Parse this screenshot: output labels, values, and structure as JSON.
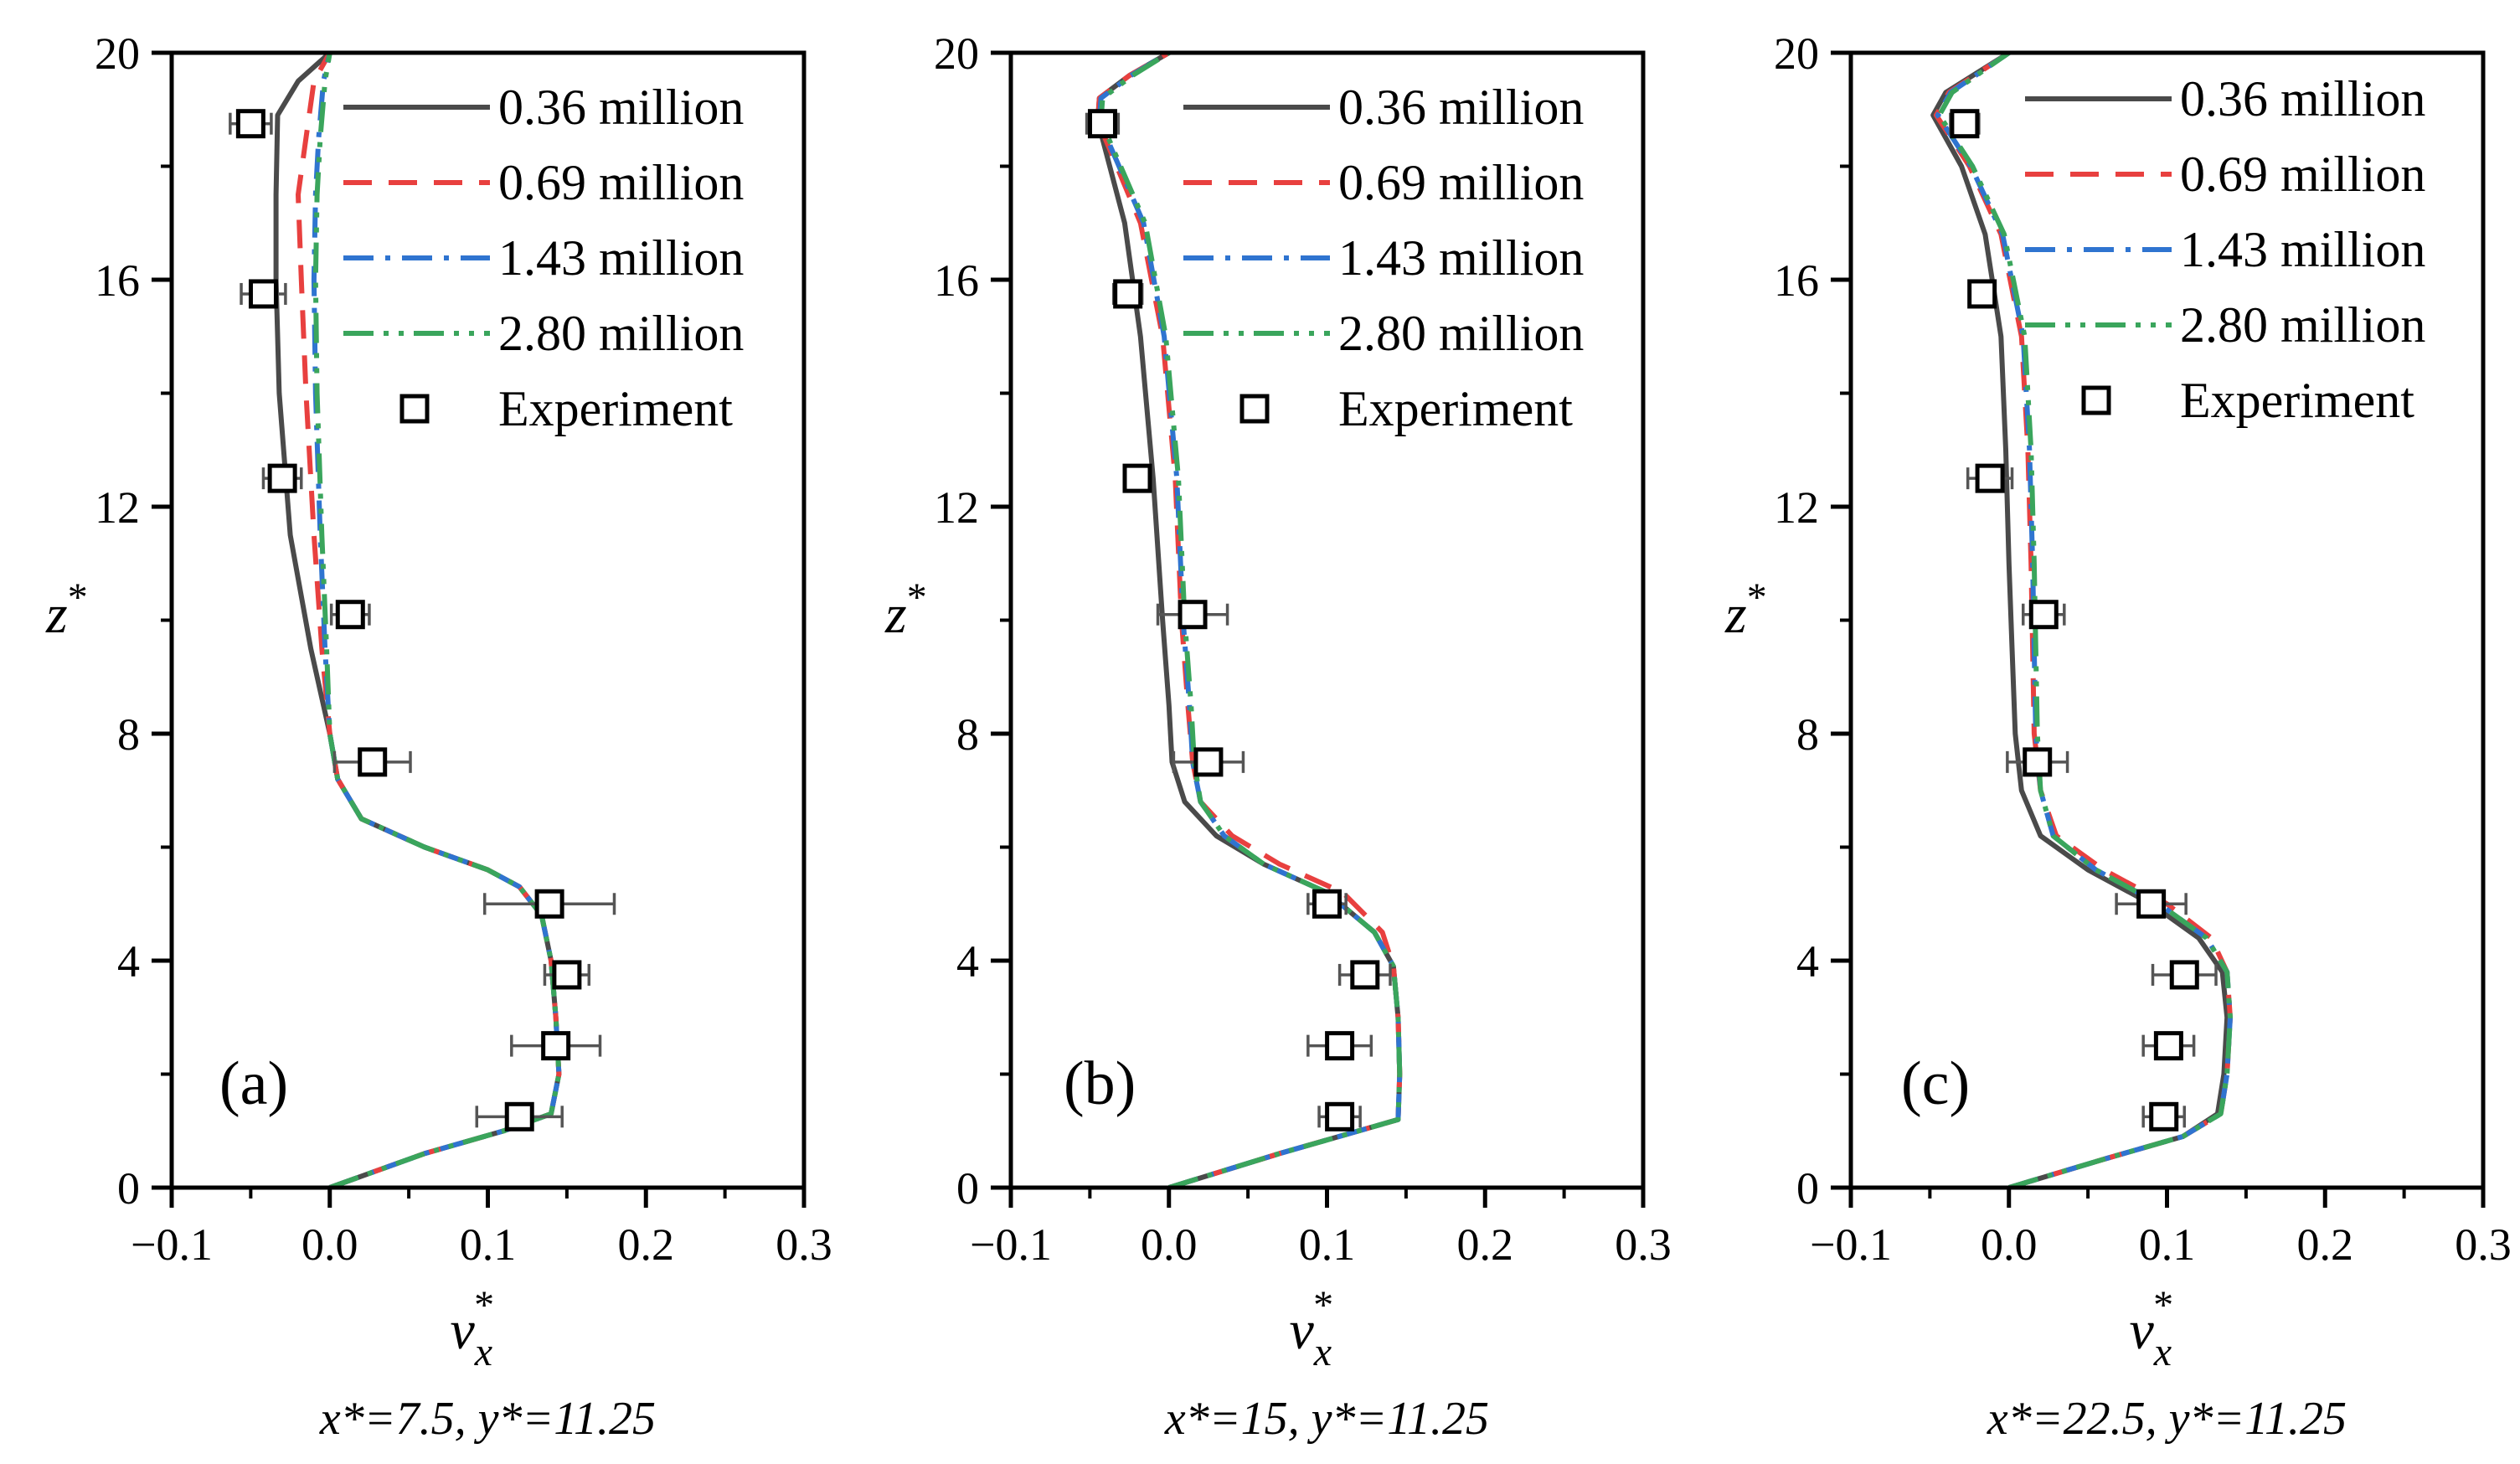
{
  "legend_labels": [
    "0.36 million",
    "0.69 million",
    "1.43 million",
    "2.80 million",
    "Experiment"
  ],
  "series_styles": [
    {
      "name": "0.36 million",
      "color": "#4a4a4a",
      "dash": "solid"
    },
    {
      "name": "0.69 million",
      "color": "#e8403f",
      "dash": "dash"
    },
    {
      "name": "1.43 million",
      "color": "#2f74d0",
      "dash": "dashdot"
    },
    {
      "name": "2.80 million",
      "color": "#3aa55c",
      "dash": "dashdotdot"
    }
  ],
  "chart_data": [
    {
      "type": "line",
      "panel": "(a)",
      "xlabel": "v",
      "xlabel_sub": "x",
      "xlabel_sup": "*",
      "ylabel": "z",
      "ylabel_sup": "*",
      "caption": "x*=7.5, y*=11.25",
      "xlim": [
        -0.1,
        0.3
      ],
      "ylim": [
        0,
        20
      ],
      "xticks": [
        "-0.1",
        "0.0",
        "0.1",
        "0.2",
        "0.3"
      ],
      "yticks": [
        "0",
        "4",
        "8",
        "12",
        "16",
        "20"
      ],
      "series": [
        {
          "name": "0.36 million",
          "x": [
            0.0,
            0.06,
            0.11,
            0.14,
            0.145,
            0.143,
            0.14,
            0.134,
            0.12,
            0.1,
            0.06,
            0.02,
            0.005,
            0.0,
            -0.012,
            -0.025,
            -0.032,
            -0.034,
            -0.034,
            -0.033,
            -0.02,
            0.0
          ],
          "y": [
            0,
            0.6,
            1.0,
            1.3,
            2.0,
            3.0,
            4.0,
            4.8,
            5.3,
            5.6,
            6.0,
            6.5,
            7.2,
            8.0,
            9.5,
            11.5,
            14.0,
            16.0,
            17.5,
            18.9,
            19.5,
            20
          ]
        },
        {
          "name": "0.69 million",
          "x": [
            0.0,
            0.06,
            0.11,
            0.14,
            0.145,
            0.143,
            0.14,
            0.134,
            0.12,
            0.1,
            0.06,
            0.02,
            0.005,
            0.0,
            -0.005,
            -0.01,
            -0.015,
            -0.018,
            -0.02,
            -0.015,
            -0.01,
            0.0
          ],
          "y": [
            0,
            0.6,
            1.0,
            1.3,
            2.0,
            3.0,
            4.0,
            4.8,
            5.3,
            5.6,
            6.0,
            6.5,
            7.2,
            8.0,
            9.5,
            11.5,
            14.0,
            16.0,
            17.5,
            18.5,
            19.5,
            20
          ]
        },
        {
          "name": "1.43 million",
          "x": [
            0.0,
            0.06,
            0.11,
            0.14,
            0.145,
            0.143,
            0.14,
            0.134,
            0.12,
            0.1,
            0.06,
            0.02,
            0.005,
            0.0,
            -0.003,
            -0.006,
            -0.009,
            -0.01,
            -0.009,
            -0.007,
            -0.004,
            0.0
          ],
          "y": [
            0,
            0.6,
            1.0,
            1.3,
            2.0,
            3.0,
            4.0,
            4.8,
            5.3,
            5.6,
            6.0,
            6.5,
            7.2,
            8.0,
            9.5,
            11.5,
            14.0,
            16.0,
            17.5,
            18.5,
            19.5,
            20
          ]
        },
        {
          "name": "2.80 million",
          "x": [
            0.0,
            0.06,
            0.11,
            0.14,
            0.145,
            0.143,
            0.14,
            0.134,
            0.12,
            0.1,
            0.06,
            0.02,
            0.005,
            0.0,
            -0.002,
            -0.005,
            -0.008,
            -0.009,
            -0.008,
            -0.006,
            -0.003,
            0.0
          ],
          "y": [
            0,
            0.6,
            1.0,
            1.3,
            2.0,
            3.0,
            4.0,
            4.8,
            5.3,
            5.6,
            6.0,
            6.5,
            7.2,
            8.0,
            9.5,
            11.5,
            14.0,
            16.0,
            17.5,
            18.5,
            19.5,
            20
          ]
        }
      ],
      "experiment": {
        "name": "Experiment",
        "x": [
          0.12,
          0.143,
          0.15,
          0.139,
          0.027,
          0.013,
          -0.03,
          -0.042,
          -0.05
        ],
        "y": [
          1.25,
          2.5,
          3.75,
          5.0,
          7.5,
          10.1,
          12.5,
          15.75,
          18.75
        ],
        "err": [
          0.027,
          0.028,
          0.014,
          0.041,
          0.024,
          0.012,
          0.012,
          0.014,
          0.013
        ]
      }
    },
    {
      "type": "line",
      "panel": "(b)",
      "xlabel": "v",
      "xlabel_sub": "x",
      "xlabel_sup": "*",
      "ylabel": "z",
      "ylabel_sup": "*",
      "caption": "x*=15, y*=11.25",
      "xlim": [
        -0.1,
        0.3
      ],
      "ylim": [
        0,
        20
      ],
      "xticks": [
        "-0.1",
        "0.0",
        "0.1",
        "0.2",
        "0.3"
      ],
      "yticks": [
        "0",
        "4",
        "8",
        "12",
        "16",
        "20"
      ],
      "series": [
        {
          "name": "0.36 million",
          "x": [
            0.0,
            0.07,
            0.12,
            0.145,
            0.146,
            0.145,
            0.142,
            0.13,
            0.1,
            0.06,
            0.03,
            0.01,
            0.002,
            0.0,
            -0.004,
            -0.01,
            -0.018,
            -0.028,
            -0.045,
            -0.044,
            -0.025,
            0.0
          ],
          "y": [
            0,
            0.6,
            1.0,
            1.2,
            2.0,
            3.0,
            3.9,
            4.5,
            5.2,
            5.7,
            6.2,
            6.8,
            7.5,
            8.5,
            10.0,
            12.5,
            15.0,
            17.0,
            18.8,
            19.2,
            19.6,
            20
          ]
        },
        {
          "name": "0.69 million",
          "x": [
            0.0,
            0.07,
            0.12,
            0.145,
            0.146,
            0.145,
            0.142,
            0.135,
            0.11,
            0.07,
            0.04,
            0.02,
            0.015,
            0.012,
            0.008,
            0.004,
            -0.004,
            -0.018,
            -0.045,
            -0.044,
            -0.025,
            0.0
          ],
          "y": [
            0,
            0.6,
            1.0,
            1.2,
            2.0,
            3.0,
            3.9,
            4.5,
            5.2,
            5.7,
            6.2,
            6.8,
            7.5,
            8.5,
            10.0,
            12.5,
            15.0,
            17.0,
            18.8,
            19.2,
            19.6,
            20
          ]
        },
        {
          "name": "1.43 million",
          "x": [
            0.0,
            0.07,
            0.12,
            0.145,
            0.146,
            0.145,
            0.142,
            0.13,
            0.1,
            0.06,
            0.035,
            0.02,
            0.015,
            0.013,
            0.009,
            0.005,
            -0.003,
            -0.016,
            -0.044,
            -0.043,
            -0.024,
            0.0
          ],
          "y": [
            0,
            0.6,
            1.0,
            1.2,
            2.0,
            3.0,
            3.9,
            4.5,
            5.2,
            5.7,
            6.2,
            6.8,
            7.5,
            8.5,
            10.0,
            12.5,
            15.0,
            17.0,
            18.8,
            19.2,
            19.6,
            20
          ]
        },
        {
          "name": "2.80 million",
          "x": [
            0.0,
            0.07,
            0.12,
            0.145,
            0.146,
            0.145,
            0.142,
            0.13,
            0.1,
            0.06,
            0.035,
            0.02,
            0.016,
            0.014,
            0.01,
            0.006,
            -0.002,
            -0.015,
            -0.043,
            -0.042,
            -0.023,
            0.0
          ],
          "y": [
            0,
            0.6,
            1.0,
            1.2,
            2.0,
            3.0,
            3.9,
            4.5,
            5.2,
            5.7,
            6.2,
            6.8,
            7.5,
            8.5,
            10.0,
            12.5,
            15.0,
            17.0,
            18.8,
            19.2,
            19.6,
            20
          ]
        }
      ],
      "experiment": {
        "name": "Experiment",
        "x": [
          0.108,
          0.108,
          0.124,
          0.1,
          0.025,
          0.015,
          -0.02,
          -0.026,
          -0.042
        ],
        "y": [
          1.25,
          2.5,
          3.75,
          5.0,
          7.5,
          10.1,
          12.5,
          15.75,
          18.75
        ],
        "err": [
          0.013,
          0.02,
          0.016,
          0.012,
          0.022,
          0.022,
          0.007,
          0.009,
          0.01
        ]
      }
    },
    {
      "type": "line",
      "panel": "(c)",
      "xlabel": "v",
      "xlabel_sub": "x",
      "xlabel_sup": "*",
      "ylabel": "z",
      "ylabel_sup": "*",
      "caption": "x*=22.5, y*=11.25",
      "xlim": [
        -0.1,
        0.3
      ],
      "ylim": [
        0,
        20
      ],
      "xticks": [
        "-0.1",
        "0.0",
        "0.1",
        "0.2",
        "0.3"
      ],
      "yticks": [
        "0",
        "4",
        "8",
        "12",
        "16",
        "20"
      ],
      "series": [
        {
          "name": "0.36 million",
          "x": [
            0.0,
            0.06,
            0.11,
            0.132,
            0.136,
            0.138,
            0.135,
            0.12,
            0.09,
            0.05,
            0.02,
            0.008,
            0.004,
            0.002,
            0.0,
            -0.002,
            -0.005,
            -0.015,
            -0.03,
            -0.048,
            -0.04,
            0.0
          ],
          "y": [
            0,
            0.5,
            0.9,
            1.3,
            2.0,
            3.0,
            3.8,
            4.4,
            5.0,
            5.6,
            6.2,
            7.0,
            8.0,
            9.5,
            11.0,
            13.0,
            15.0,
            16.8,
            18.0,
            18.9,
            19.3,
            20
          ]
        },
        {
          "name": "0.69 million",
          "x": [
            0.0,
            0.06,
            0.11,
            0.134,
            0.138,
            0.14,
            0.138,
            0.128,
            0.1,
            0.06,
            0.03,
            0.02,
            0.016,
            0.015,
            0.014,
            0.012,
            0.008,
            -0.005,
            -0.025,
            -0.046,
            -0.038,
            0.0
          ],
          "y": [
            0,
            0.5,
            0.9,
            1.3,
            2.0,
            3.0,
            3.8,
            4.4,
            5.0,
            5.6,
            6.2,
            7.0,
            8.0,
            9.5,
            11.0,
            13.0,
            15.0,
            16.8,
            18.0,
            18.9,
            19.3,
            20
          ]
        },
        {
          "name": "1.43 million",
          "x": [
            0.0,
            0.06,
            0.11,
            0.134,
            0.138,
            0.14,
            0.138,
            0.125,
            0.095,
            0.055,
            0.028,
            0.02,
            0.017,
            0.016,
            0.015,
            0.013,
            0.009,
            -0.004,
            -0.024,
            -0.045,
            -0.037,
            0.0
          ],
          "y": [
            0,
            0.5,
            0.9,
            1.3,
            2.0,
            3.0,
            3.8,
            4.4,
            5.0,
            5.6,
            6.2,
            7.0,
            8.0,
            9.5,
            11.0,
            13.0,
            15.0,
            16.8,
            18.0,
            18.9,
            19.3,
            20
          ]
        },
        {
          "name": "2.80 million",
          "x": [
            0.0,
            0.06,
            0.11,
            0.134,
            0.138,
            0.14,
            0.138,
            0.125,
            0.095,
            0.055,
            0.028,
            0.02,
            0.018,
            0.017,
            0.016,
            0.014,
            0.01,
            -0.003,
            -0.023,
            -0.044,
            -0.036,
            0.0
          ],
          "y": [
            0,
            0.5,
            0.9,
            1.3,
            2.0,
            3.0,
            3.8,
            4.4,
            5.0,
            5.6,
            6.2,
            7.0,
            8.0,
            9.5,
            11.0,
            13.0,
            15.0,
            16.8,
            18.0,
            18.9,
            19.3,
            20
          ]
        }
      ],
      "experiment": {
        "name": "Experiment",
        "x": [
          0.098,
          0.101,
          0.111,
          0.09,
          0.018,
          0.022,
          -0.012,
          -0.017,
          -0.028
        ],
        "y": [
          1.25,
          2.5,
          3.75,
          5.0,
          7.5,
          10.1,
          12.5,
          15.75,
          18.75
        ],
        "err": [
          0.013,
          0.016,
          0.02,
          0.022,
          0.019,
          0.013,
          0.014,
          0.0,
          0.009
        ]
      }
    }
  ]
}
